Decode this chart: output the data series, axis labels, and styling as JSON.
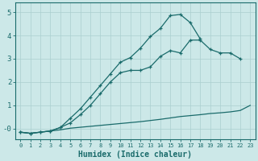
{
  "xlabel": "Humidex (Indice chaleur)",
  "bg_color": "#cce8e8",
  "grid_color": "#aacfcf",
  "line_color": "#1a6b6b",
  "xlim": [
    -0.5,
    23.5
  ],
  "ylim": [
    -0.45,
    5.4
  ],
  "xticks": [
    0,
    1,
    2,
    3,
    4,
    5,
    6,
    7,
    8,
    9,
    10,
    11,
    12,
    13,
    14,
    15,
    16,
    17,
    18,
    19,
    20,
    21,
    22,
    23
  ],
  "yticks": [
    0,
    1,
    2,
    3,
    4,
    5
  ],
  "ytick_labels": [
    "-0",
    "1",
    "2",
    "3",
    "4",
    "5"
  ],
  "line1_x": [
    0,
    1,
    2,
    3,
    4,
    5,
    6,
    7,
    8,
    9,
    10,
    11,
    12,
    13,
    14,
    15,
    16,
    17,
    18,
    19,
    20,
    21,
    22,
    23
  ],
  "line1_y": [
    -0.15,
    -0.2,
    -0.15,
    -0.1,
    -0.05,
    0.02,
    0.06,
    0.1,
    0.14,
    0.18,
    0.22,
    0.26,
    0.3,
    0.35,
    0.4,
    0.46,
    0.52,
    0.56,
    0.6,
    0.65,
    0.68,
    0.72,
    0.78,
    1.0
  ],
  "line2_x": [
    0,
    1,
    2,
    3,
    4,
    5,
    6,
    7,
    8,
    9,
    10,
    11,
    12,
    13,
    14,
    15,
    16,
    17,
    18,
    19,
    20,
    21,
    22
  ],
  "line2_y": [
    -0.15,
    -0.2,
    -0.15,
    -0.1,
    0.05,
    0.25,
    0.6,
    1.0,
    1.5,
    2.0,
    2.4,
    2.5,
    2.5,
    2.65,
    3.1,
    3.35,
    3.25,
    3.8,
    3.8,
    3.4,
    3.25,
    3.25,
    3.0
  ],
  "line3_x": [
    0,
    1,
    2,
    3,
    4,
    5,
    6,
    7,
    8,
    9,
    10,
    11,
    12,
    13,
    14,
    15,
    16,
    17,
    18
  ],
  "line3_y": [
    -0.15,
    -0.2,
    -0.15,
    -0.1,
    0.05,
    0.45,
    0.85,
    1.35,
    1.85,
    2.35,
    2.85,
    3.05,
    3.45,
    3.95,
    4.3,
    4.85,
    4.9,
    4.55,
    3.85
  ]
}
